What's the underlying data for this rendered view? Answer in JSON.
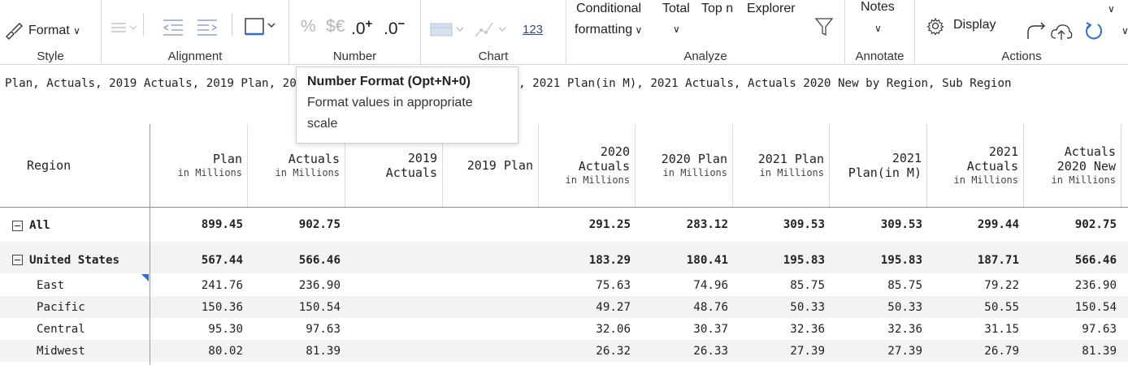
{
  "ribbon": {
    "style": {
      "format_label": "Format",
      "group_label": "Style",
      "icon": "paint-brush-icon"
    },
    "alignment": {
      "group_label": "Alignment"
    },
    "number": {
      "group_label": "Number",
      "percent": "%",
      "currency": "$€",
      "inc_decimal": ".0",
      "inc_sup": "+",
      "dec_decimal": ".0",
      "dec_sup": "−"
    },
    "chart": {
      "group_label": "Chart",
      "num_label": "123"
    },
    "analyze": {
      "group_label": "Analyze",
      "conditional_1": "Conditional",
      "conditional_2": "formatting",
      "total": "Total",
      "topn_1": "Top n",
      "explorer": "Explorer"
    },
    "annotate": {
      "group_label": "Annotate",
      "notes": "Notes"
    },
    "actions": {
      "group_label": "Actions",
      "display": "Display"
    }
  },
  "title_line": "Plan, Actuals, 2019 Actuals, 2019 Plan, 2020 Actuals, 2020 Plan, 2021 Plan, 2021 Plan(in M), 2021 Actuals, Actuals 2020 New by Region, Sub Region",
  "tooltip": {
    "title": "Number Format (Opt+N+0)",
    "body_1": "Format values in appropriate",
    "body_2": "scale"
  },
  "table": {
    "columns": [
      {
        "main": "Region",
        "sub": ""
      },
      {
        "main": "Plan",
        "sub": "in Millions"
      },
      {
        "main": "Actuals",
        "sub": "in Millions"
      },
      {
        "main": "2019 Actuals",
        "sub": ""
      },
      {
        "main": "2019 Plan",
        "sub": ""
      },
      {
        "main": "2020 Actuals",
        "sub": "in Millions"
      },
      {
        "main": "2020 Plan",
        "sub": "in Millions"
      },
      {
        "main": "2021 Plan",
        "sub": "in Millions"
      },
      {
        "main": "2021 Plan(in M)",
        "sub": ""
      },
      {
        "main": "2021 Actuals",
        "sub": "in Millions"
      },
      {
        "main": "Actuals 2020 New",
        "sub": "in Millions"
      }
    ],
    "rows": [
      {
        "label": "All",
        "expandable": true,
        "bold": true,
        "values": [
          "899.45",
          "902.75",
          "",
          "",
          "291.25",
          "283.12",
          "309.53",
          "309.53",
          "299.44",
          "902.75"
        ]
      },
      {
        "label": "United States",
        "expandable": true,
        "bold": true,
        "values": [
          "567.44",
          "566.46",
          "",
          "",
          "183.29",
          "180.41",
          "195.83",
          "195.83",
          "187.71",
          "566.46"
        ]
      },
      {
        "label": "East",
        "expandable": false,
        "bold": false,
        "values": [
          "241.76",
          "236.90",
          "",
          "",
          "75.63",
          "74.96",
          "85.75",
          "85.75",
          "79.22",
          "236.90"
        ]
      },
      {
        "label": "Pacific",
        "expandable": false,
        "bold": false,
        "values": [
          "150.36",
          "150.54",
          "",
          "",
          "49.27",
          "48.76",
          "50.33",
          "50.33",
          "50.55",
          "150.54"
        ]
      },
      {
        "label": "Central",
        "expandable": false,
        "bold": false,
        "values": [
          "95.30",
          "97.63",
          "",
          "",
          "32.06",
          "30.37",
          "32.36",
          "32.36",
          "31.15",
          "97.63"
        ]
      },
      {
        "label": "Midwest",
        "expandable": false,
        "bold": false,
        "values": [
          "80.02",
          "81.39",
          "",
          "",
          "26.32",
          "26.33",
          "27.39",
          "27.39",
          "26.79",
          "81.39"
        ]
      }
    ]
  }
}
